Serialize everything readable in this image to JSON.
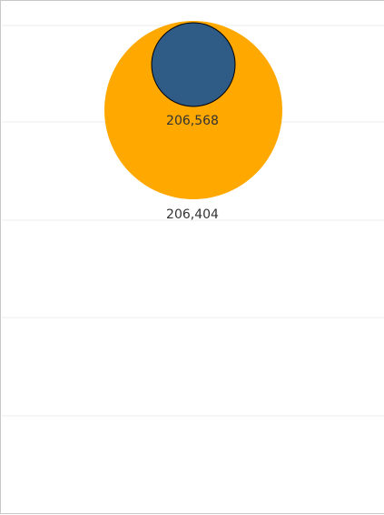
{
  "chart_data": {
    "type": "bubble",
    "grid": true,
    "legend": "none",
    "series": [
      {
        "value": 206404,
        "label": "206,404",
        "color": "#FFA800"
      },
      {
        "value": 206568,
        "label": "206,568",
        "color": "#2E5C87"
      }
    ]
  }
}
